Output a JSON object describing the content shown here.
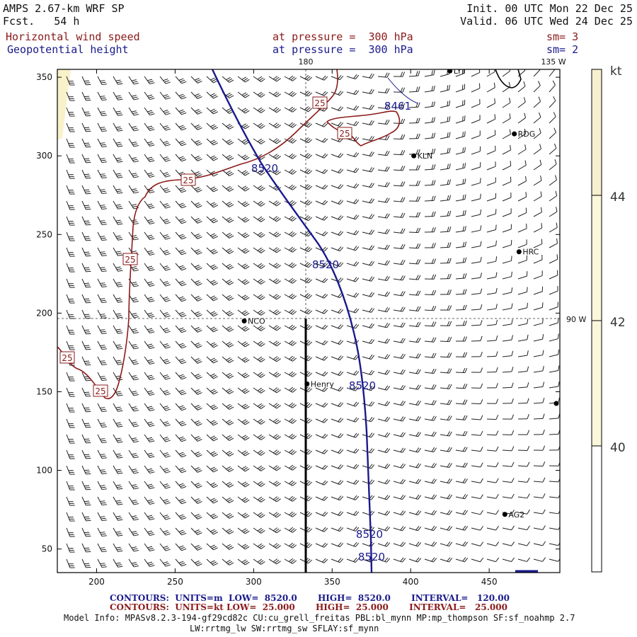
{
  "header": {
    "model": "AMPS 2.67-km WRF SP",
    "fcst": "Fcst.   54 h",
    "init": "Init. 00 UTC Mon 22 Dec 25",
    "valid": "Valid. 06 UTC Wed 24 Dec 25",
    "field1_name": "Horizontal wind speed",
    "field1_level": "at pressure =  300 hPa",
    "field1_sm": "sm= 3",
    "field2_name": "Geopotential height",
    "field2_level": "at pressure =  300 hPa",
    "field2_sm": "sm= 2"
  },
  "map": {
    "x_ticks": [
      "200",
      "250",
      "300",
      "350",
      "400",
      "450"
    ],
    "y_ticks": [
      "350",
      "300",
      "250",
      "200",
      "150",
      "100",
      "50"
    ],
    "x_range": [
      175,
      495
    ],
    "y_range": [
      35,
      355
    ],
    "lon_labels": {
      "top_180": "180",
      "top_135w": "135 W",
      "right_90w": "90 W"
    },
    "stations": [
      {
        "label": "LYT",
        "x": 425,
        "y": 354
      },
      {
        "label": "RDG",
        "x": 466,
        "y": 314
      },
      {
        "label": "KLN",
        "x": 402,
        "y": 300
      },
      {
        "label": "HRC",
        "x": 469,
        "y": 239
      },
      {
        "label": "NCO",
        "x": 294,
        "y": 195
      },
      {
        "label": "Henry",
        "x": 334,
        "y": 155
      },
      {
        "label": "AG2",
        "x": 460,
        "y": 72
      }
    ],
    "height_contour_label": "8520",
    "height_low_label": "8461",
    "wind_contour_label": "25",
    "colors": {
      "height": "#1a1a8c",
      "wind": "#8b1a1a",
      "barb": "#222222",
      "land": "#000000"
    }
  },
  "colorbar": {
    "unit": "kt",
    "labels": [
      "44",
      "42",
      "40"
    ],
    "shade_light": "#fbf7dc",
    "shade_mid": "#f7efcf"
  },
  "footer": {
    "blue": {
      "contours": "CONTOURS:",
      "units": "UNITS=m",
      "low": "LOW=  8520.0",
      "high": "HIGH=  8520.0",
      "interval": "INTERVAL=   120.00"
    },
    "red": {
      "contours": "CONTOURS:",
      "units": "UNITS=kt",
      "low": "LOW=  25.000",
      "high": "HIGH=  25.000",
      "interval": "INTERVAL=   25.000"
    },
    "info1": "Model Info: MPASv8.2.3-194-gf29cd82c CU:cu_grell_freitas PBL:bl_mynn MP:mp_thompson SF:sf_noahmp 2.7",
    "info2": "LW:rrtmg_lw SW:rrtmg_sw SFLAY:sf_mynn"
  }
}
